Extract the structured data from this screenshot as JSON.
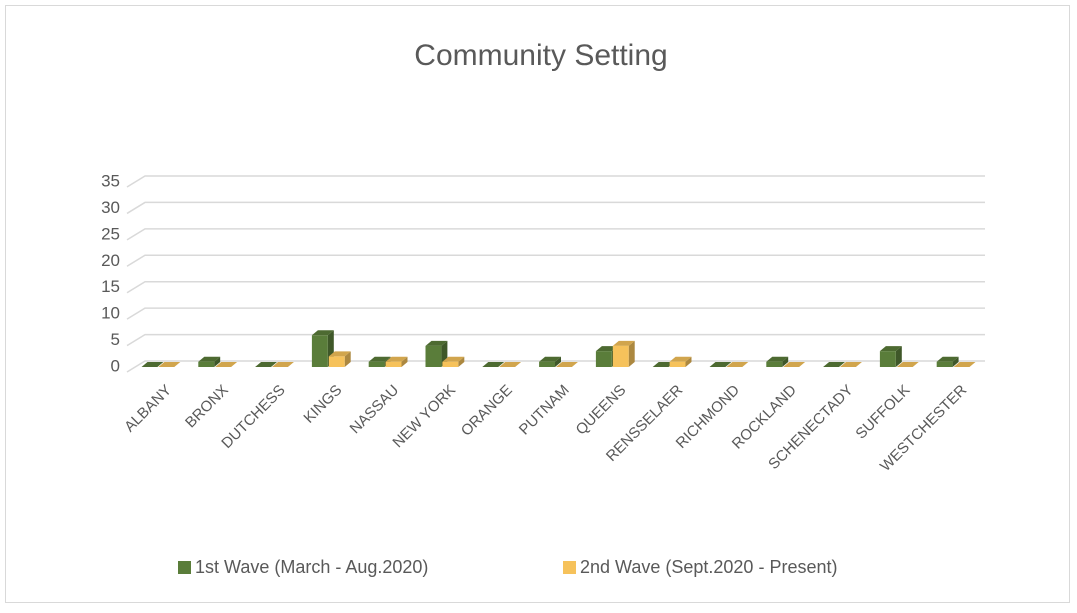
{
  "chart_data": {
    "type": "bar",
    "title": "Community Setting",
    "categories": [
      "ALBANY",
      "BRONX",
      "DUTCHESS",
      "KINGS",
      "NASSAU",
      "NEW YORK",
      "ORANGE",
      "PUTNAM",
      "QUEENS",
      "RENSSELAER",
      "RICHMOND",
      "ROCKLAND",
      "SCHENECTADY",
      "SUFFOLK",
      "WESTCHESTER"
    ],
    "series": [
      {
        "name": "1st Wave (March - Aug.2020)",
        "color": "#5a7d3a",
        "values": [
          0,
          1,
          0,
          6,
          1,
          4,
          0,
          1,
          3,
          0,
          0,
          1,
          0,
          3,
          1
        ]
      },
      {
        "name": "2nd Wave (Sept.2020 - Present)",
        "color": "#f6c25b",
        "values": [
          0,
          0,
          0,
          2,
          1,
          1,
          0,
          0,
          4,
          1,
          0,
          0,
          0,
          0,
          0
        ]
      }
    ],
    "ylim": [
      0,
      35
    ],
    "yticks": [
      0,
      5,
      10,
      15,
      20,
      25,
      30,
      35
    ],
    "grid": true,
    "legend": "bottom"
  }
}
